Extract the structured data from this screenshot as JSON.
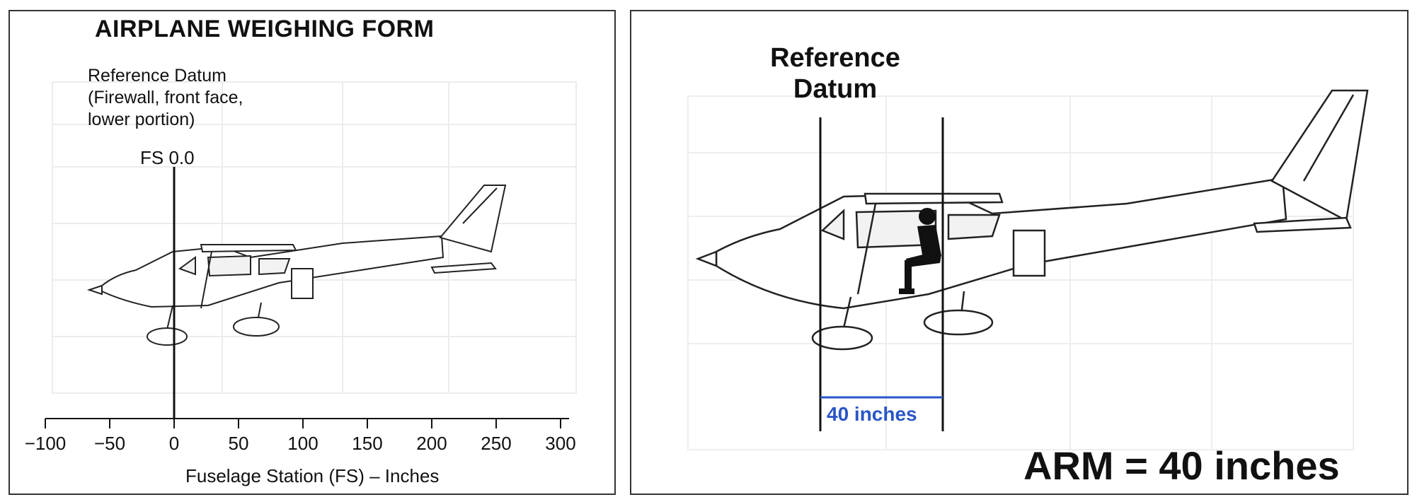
{
  "left": {
    "title": "AIRPLANE WEIGHING FORM",
    "datum_lines": [
      "Reference Datum",
      "(Firewall, front face,",
      "lower portion)"
    ],
    "fs_zero_label": "FS 0.0",
    "axis_ticks": [
      "−100",
      "−50",
      "0",
      "50",
      "100",
      "150",
      "200",
      "250",
      "300"
    ],
    "axis_title": "Fuselage Station (FS) – Inches"
  },
  "right": {
    "datum_lines": [
      "Reference",
      "Datum"
    ],
    "dimension_label": "40 inches",
    "result": "ARM = 40 inches",
    "accent_color": "#2a56c6"
  }
}
